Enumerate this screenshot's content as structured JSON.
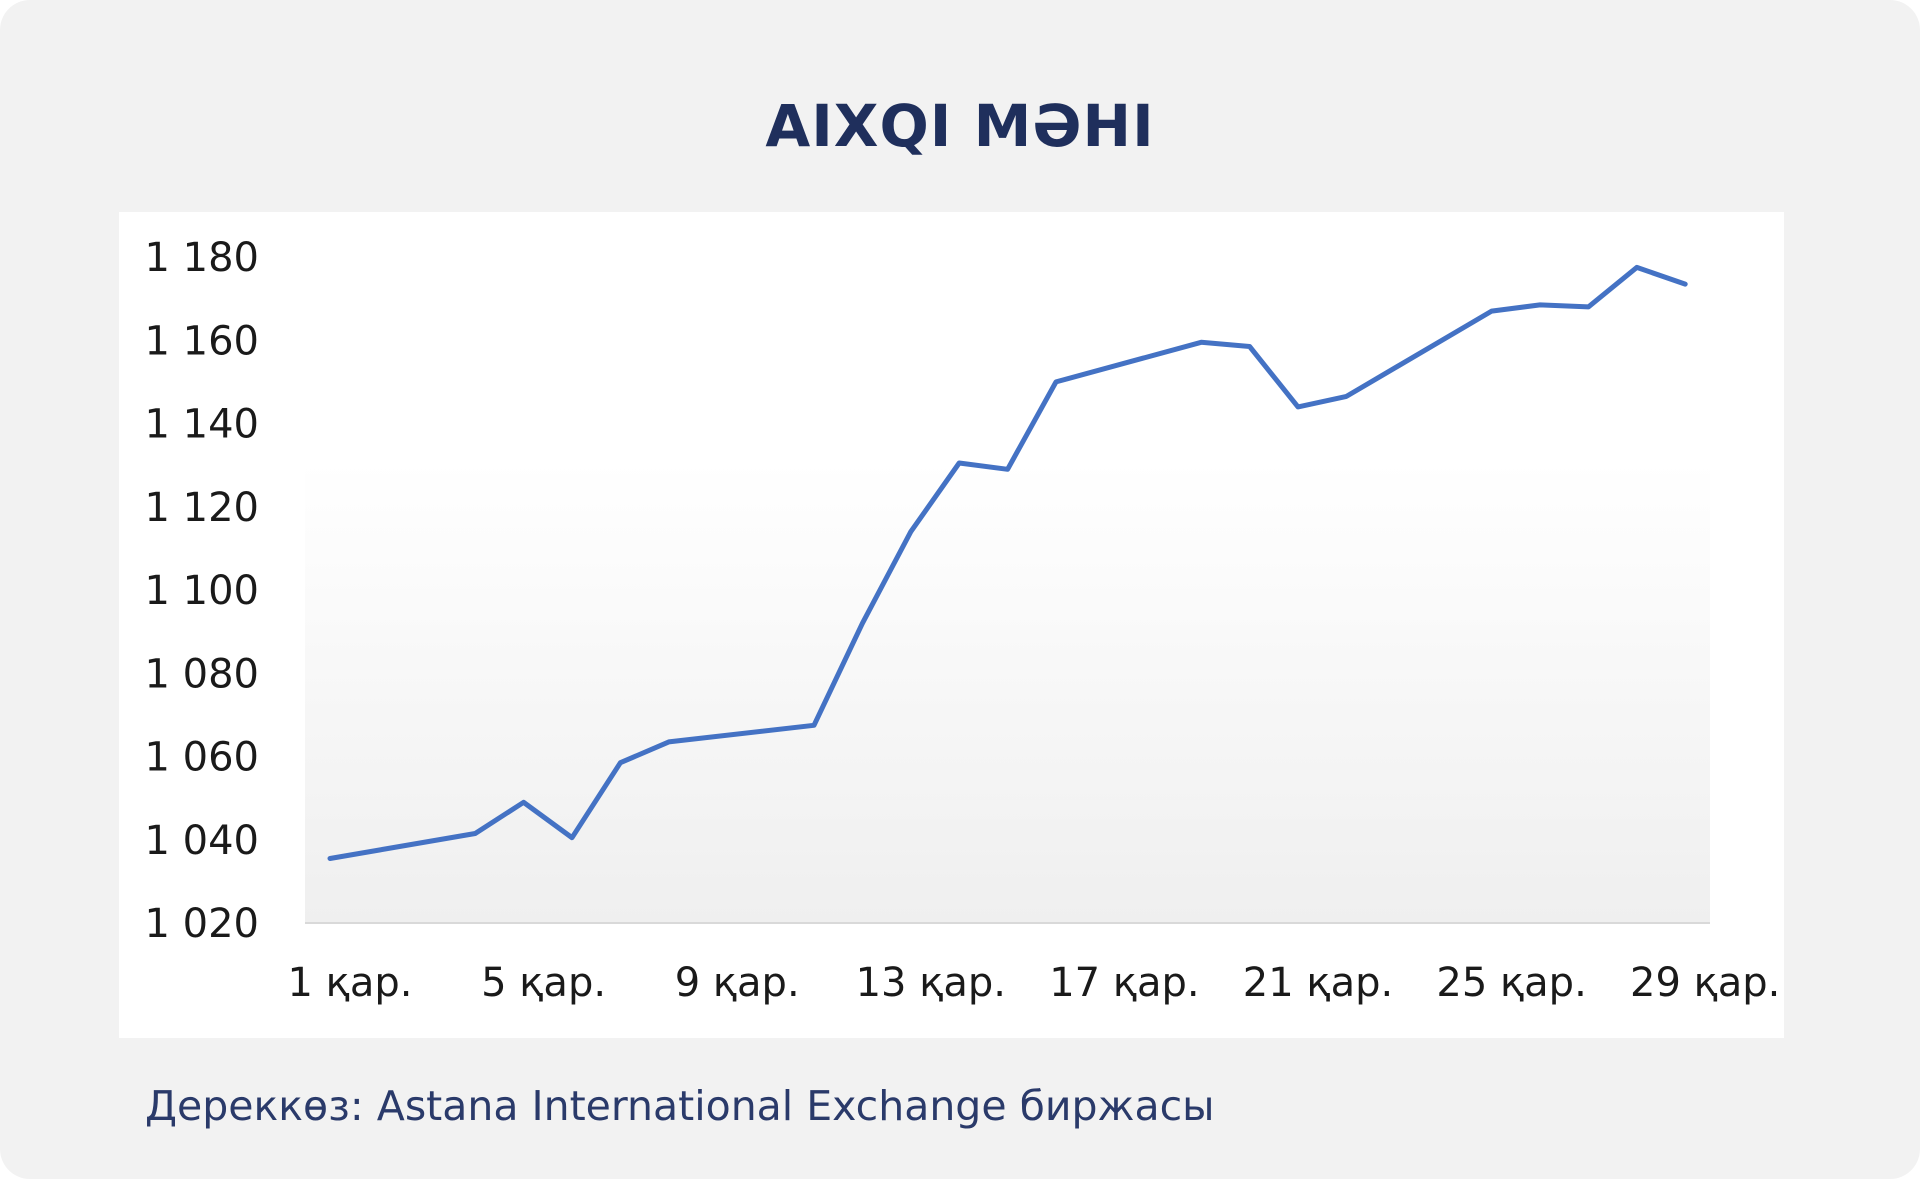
{
  "title": "AIXQI МӘНІ",
  "source": "Дереккөз: Astana International Exchange биржасы",
  "colors": {
    "line": "#4472c4",
    "title": "#1f2f5c",
    "background": "#f2f2f2",
    "plot": "#ffffff"
  },
  "chart_data": {
    "type": "line",
    "title": "AIXQI МӘНІ",
    "xlabel": "",
    "ylabel": "",
    "ylim": [
      1020,
      1180
    ],
    "yticks": [
      1020,
      1040,
      1060,
      1080,
      1100,
      1120,
      1140,
      1160,
      1180
    ],
    "ytick_labels": [
      "1 020",
      "1 040",
      "1 060",
      "1 080",
      "1 100",
      "1 120",
      "1 140",
      "1 160",
      "1 180"
    ],
    "xlim": [
      1,
      30
    ],
    "xticks": [
      1,
      5,
      9,
      13,
      17,
      21,
      25,
      29
    ],
    "xtick_labels": [
      "1 қар.",
      "5 қар.",
      "9 қар.",
      "13 қар.",
      "17 қар.",
      "21 қар.",
      "25 қар.",
      "29 қар."
    ],
    "grid": false,
    "legend": "none",
    "series": [
      {
        "x": [
          1,
          4,
          5,
          6,
          7,
          8,
          11,
          12,
          13,
          14,
          15,
          16,
          19,
          20,
          21,
          22,
          25,
          26,
          27,
          28,
          29
        ],
        "values": [
          1035.5,
          1041.5,
          1049,
          1040.5,
          1058.5,
          1063.5,
          1067.5,
          1092,
          1114,
          1130.5,
          1129,
          1150,
          1159.5,
          1158.5,
          1144,
          1146.5,
          1167,
          1168.5,
          1168,
          1177.5,
          1173.5
        ]
      }
    ]
  }
}
